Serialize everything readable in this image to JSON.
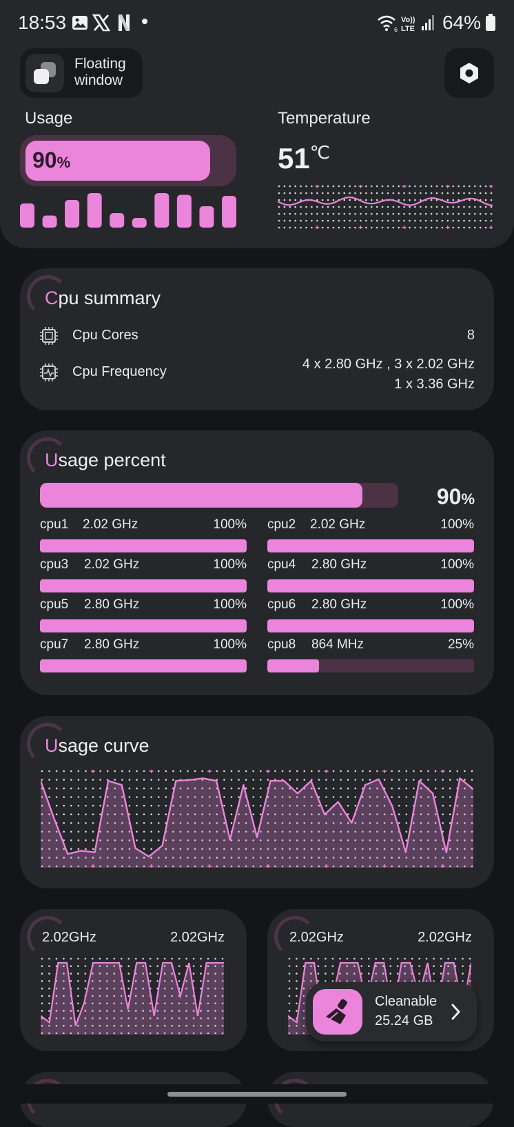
{
  "status_bar": {
    "time": "18:53",
    "battery": "64%",
    "network_label": "Vo)) LTE",
    "signal_label": "6"
  },
  "floating": {
    "label_line1": "Floating",
    "label_line2": "window"
  },
  "usage": {
    "title": "Usage",
    "value": "90",
    "unit": "%",
    "fraction": 0.9,
    "bars": [
      0.7,
      0.35,
      0.8,
      1.0,
      0.42,
      0.25,
      1.0,
      0.95,
      0.62,
      0.92
    ]
  },
  "temperature": {
    "title": "Temperature",
    "value": "51",
    "unit": "℃"
  },
  "cpu_summary": {
    "title_first": "C",
    "title_rest": "pu summary",
    "cores_label": "Cpu Cores",
    "cores_value": "8",
    "freq_label": "Cpu Frequency",
    "freq_line1": "4 x 2.80 GHz , 3 x 2.02 GHz",
    "freq_line2": "1 x 3.36 GHz"
  },
  "usage_percent": {
    "title_first": "U",
    "title_rest": "sage percent",
    "total_value": "90",
    "total_unit": "%",
    "total_fraction": 0.9,
    "cores": [
      {
        "name": "cpu1",
        "freq": "2.02 GHz",
        "pct": "100%",
        "fraction": 1.0
      },
      {
        "name": "cpu2",
        "freq": "2.02 GHz",
        "pct": "100%",
        "fraction": 1.0
      },
      {
        "name": "cpu3",
        "freq": "2.02 GHz",
        "pct": "100%",
        "fraction": 1.0
      },
      {
        "name": "cpu4",
        "freq": "2.80 GHz",
        "pct": "100%",
        "fraction": 1.0
      },
      {
        "name": "cpu5",
        "freq": "2.80 GHz",
        "pct": "100%",
        "fraction": 1.0
      },
      {
        "name": "cpu6",
        "freq": "2.80 GHz",
        "pct": "100%",
        "fraction": 1.0
      },
      {
        "name": "cpu7",
        "freq": "2.80 GHz",
        "pct": "100%",
        "fraction": 1.0
      },
      {
        "name": "cpu8",
        "freq": "864 MHz",
        "pct": "25%",
        "fraction": 0.25
      }
    ]
  },
  "usage_curve": {
    "title_first": "U",
    "title_rest": "sage curve"
  },
  "freq_cards": [
    {
      "left": "2.02GHz",
      "right": "2.02GHz"
    },
    {
      "left": "2.02GHz",
      "right": "2.02GHz"
    }
  ],
  "cleanable": {
    "label": "Cleanable",
    "size": "25.24 GB"
  },
  "colors": {
    "accent": "#eb84db",
    "track": "#4b3245",
    "card": "#26272b",
    "background": "#141518"
  }
}
